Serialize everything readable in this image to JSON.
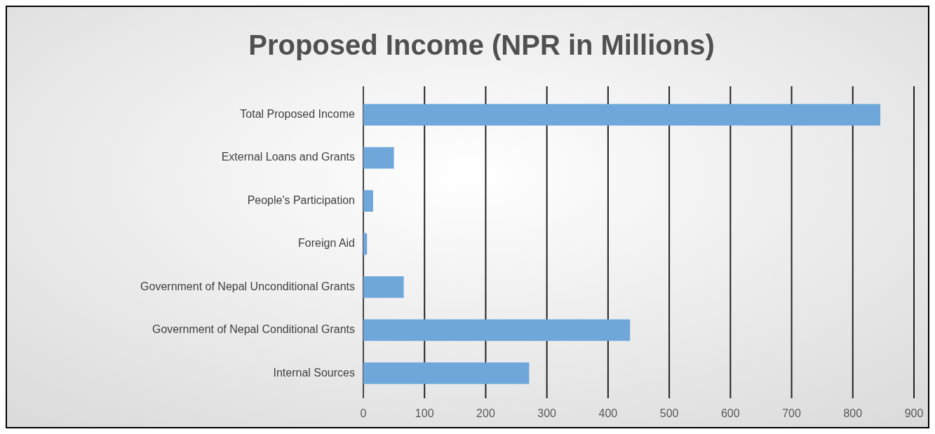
{
  "chart_data": {
    "type": "bar",
    "orientation": "horizontal",
    "title": "Proposed Income (NPR in Millions)",
    "categories": [
      "Total Proposed Income",
      "External Loans and Grants",
      "People's Participation",
      "Foreign Aid",
      "Government of Nepal Unconditional Grants",
      "Government of Nepal Conditional Grants",
      "Internal Sources"
    ],
    "values": [
      845,
      50,
      16,
      6,
      66,
      436,
      271
    ],
    "color": "#6fa7db",
    "xlim": [
      0,
      900
    ],
    "xticks": [
      0,
      100,
      200,
      300,
      400,
      500,
      600,
      700,
      800,
      900
    ],
    "grid": "x"
  }
}
